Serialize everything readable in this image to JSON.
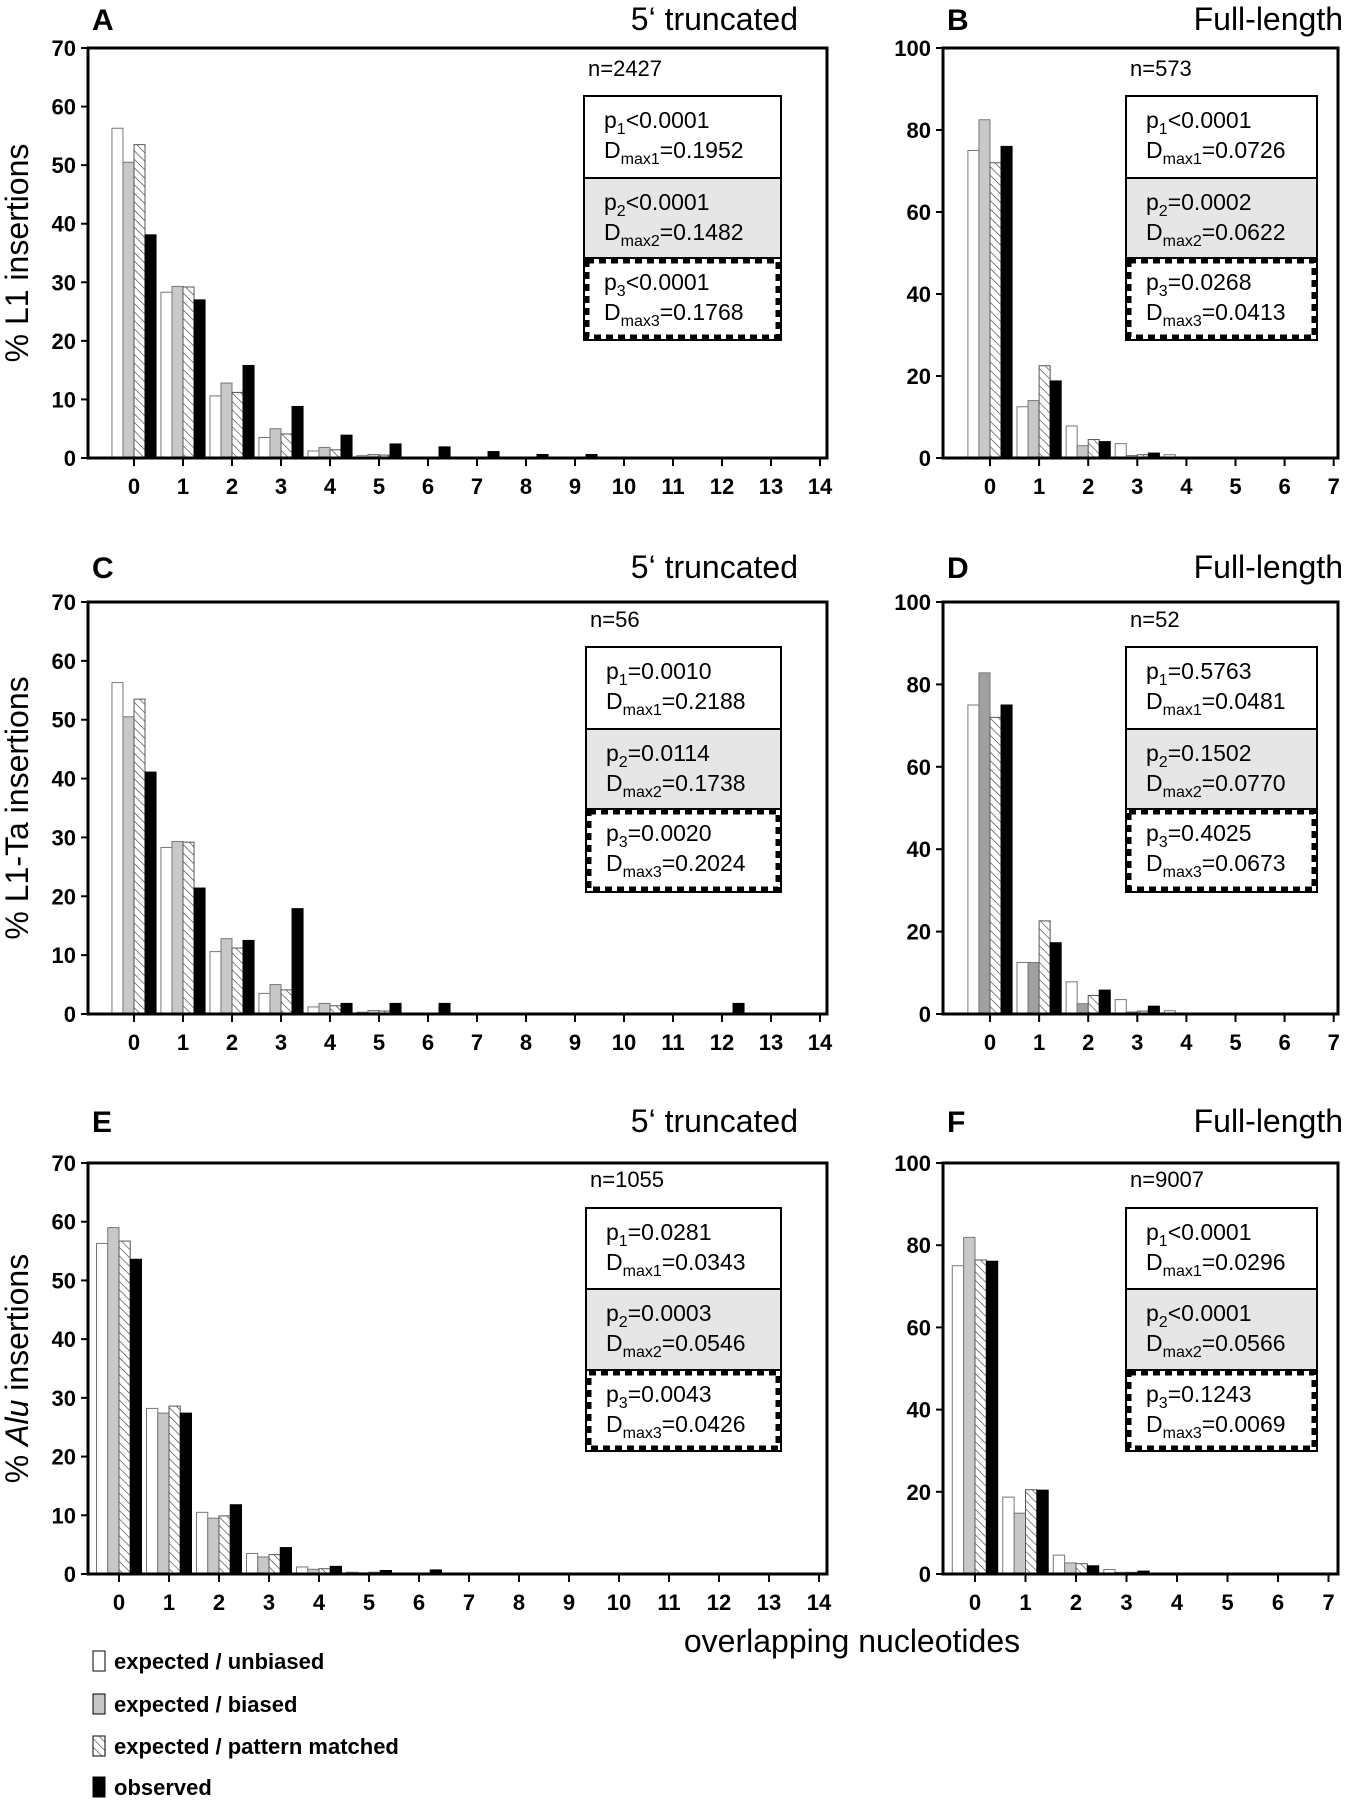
{
  "chart_data": {
    "type": "bar",
    "x_label": "overlapping nucleotides",
    "legend": {
      "placement": "bottom-left",
      "entries": [
        {
          "name": "expected / unbiased",
          "fill": "#ffffff",
          "style": "solid"
        },
        {
          "name": "expected / biased",
          "fill": "#c8c8c8",
          "style": "solid"
        },
        {
          "name": "expected / pattern matched",
          "fill": "#ffffff",
          "style": "hatched"
        },
        {
          "name": "observed",
          "fill": "#000000",
          "style": "solid"
        }
      ]
    },
    "panels": [
      {
        "letter": "A",
        "title": "5‘ truncated",
        "ylabel": "% L1 insertions",
        "ylabel_italic": "",
        "ylim": [
          0,
          70
        ],
        "yticks": [
          0,
          10,
          20,
          30,
          40,
          50,
          60,
          70
        ],
        "categories": [
          "0",
          "1",
          "2",
          "3",
          "4",
          "5",
          "6",
          "7",
          "8",
          "9",
          "10",
          "11",
          "12",
          "13",
          "14"
        ],
        "n": "n=2427",
        "biased_fill": "#c8c8c8",
        "series": [
          {
            "name": "expected / unbiased",
            "values": [
              56.3,
              28.3,
              10.6,
              3.5,
              1.2,
              0.4,
              0.1,
              0,
              0,
              0,
              0,
              0,
              0,
              0,
              0
            ]
          },
          {
            "name": "expected / biased",
            "values": [
              50.5,
              29.3,
              12.8,
              5.0,
              1.8,
              0.6,
              0.15,
              0,
              0,
              0,
              0,
              0,
              0,
              0,
              0
            ]
          },
          {
            "name": "expected / pattern matched",
            "values": [
              53.5,
              29.2,
              11.2,
              4.1,
              1.4,
              0.5,
              0.1,
              0,
              0,
              0,
              0,
              0,
              0,
              0,
              0
            ]
          },
          {
            "name": "observed",
            "values": [
              38.1,
              27.0,
              15.8,
              8.8,
              3.9,
              2.4,
              1.9,
              1.1,
              0.6,
              0.6,
              0,
              0,
              0.1,
              0,
              0
            ]
          }
        ],
        "stats": [
          {
            "p": "p",
            "p_sub": "1",
            "p_val": "<0.0001",
            "d": "D",
            "d_sub": "max1",
            "d_val": "=0.1952"
          },
          {
            "p": "p",
            "p_sub": "2",
            "p_val": "<0.0001",
            "d": "D",
            "d_sub": "max2",
            "d_val": "=0.1482"
          },
          {
            "p": "p",
            "p_sub": "3",
            "p_val": "<0.0001",
            "d": "D",
            "d_sub": "max3",
            "d_val": "=0.1768"
          }
        ]
      },
      {
        "letter": "B",
        "title": "Full-length",
        "ylabel": "",
        "ylabel_italic": "",
        "ylim": [
          0,
          100
        ],
        "yticks": [
          0,
          20,
          40,
          60,
          80,
          100
        ],
        "categories": [
          "0",
          "1",
          "2",
          "3",
          "4",
          "5",
          "6",
          "7"
        ],
        "n": "n=573",
        "biased_fill": "#c8c8c8",
        "series": [
          {
            "name": "expected / unbiased",
            "values": [
              75,
              12.5,
              7.8,
              3.5,
              0.8,
              0.1,
              0,
              0
            ]
          },
          {
            "name": "expected / biased",
            "values": [
              82.5,
              14,
              3,
              0.6,
              0,
              0,
              0,
              0
            ]
          },
          {
            "name": "expected / pattern matched",
            "values": [
              72,
              22.5,
              4.5,
              0.8,
              0,
              0,
              0,
              0
            ]
          },
          {
            "name": "observed",
            "values": [
              76,
              18.8,
              4,
              1.2,
              0,
              0,
              0,
              0
            ]
          }
        ],
        "stats": [
          {
            "p": "p",
            "p_sub": "1",
            "p_val": "<0.0001",
            "d": "D",
            "d_sub": "max1",
            "d_val": "=0.0726"
          },
          {
            "p": "p",
            "p_sub": "2",
            "p_val": "=0.0002",
            "d": "D",
            "d_sub": "max2",
            "d_val": "=0.0622"
          },
          {
            "p": "p",
            "p_sub": "3",
            "p_val": "=0.0268",
            "d": "D",
            "d_sub": "max3",
            "d_val": "=0.0413"
          }
        ]
      },
      {
        "letter": "C",
        "title": "5‘ truncated",
        "ylabel": "% L1-Ta insertions",
        "ylabel_italic": "",
        "ylim": [
          0,
          70
        ],
        "yticks": [
          0,
          10,
          20,
          30,
          40,
          50,
          60,
          70
        ],
        "categories": [
          "0",
          "1",
          "2",
          "3",
          "4",
          "5",
          "6",
          "7",
          "8",
          "9",
          "10",
          "11",
          "12",
          "13",
          "14"
        ],
        "n": "n=56",
        "biased_fill": "#c8c8c8",
        "series": [
          {
            "name": "expected / unbiased",
            "values": [
              56.3,
              28.3,
              10.6,
              3.5,
              1.2,
              0.3,
              0.1,
              0,
              0,
              0,
              0,
              0,
              0,
              0,
              0
            ]
          },
          {
            "name": "expected / biased",
            "values": [
              50.5,
              29.3,
              12.8,
              5.0,
              1.8,
              0.6,
              0.1,
              0,
              0,
              0,
              0,
              0,
              0,
              0,
              0
            ]
          },
          {
            "name": "expected / pattern matched",
            "values": [
              53.5,
              29.2,
              11.2,
              4.1,
              1.4,
              0.5,
              0.1,
              0,
              0,
              0,
              0,
              0,
              0,
              0,
              0
            ]
          },
          {
            "name": "observed",
            "values": [
              41.1,
              21.4,
              12.5,
              17.9,
              1.8,
              1.8,
              1.8,
              0,
              0,
              0,
              0,
              0,
              1.8,
              0,
              0
            ]
          }
        ],
        "stats": [
          {
            "p": "p",
            "p_sub": "1",
            "p_val": "=0.0010",
            "d": "D",
            "d_sub": "max1",
            "d_val": "=0.2188"
          },
          {
            "p": "p",
            "p_sub": "2",
            "p_val": "=0.0114",
            "d": "D",
            "d_sub": "max2",
            "d_val": "=0.1738"
          },
          {
            "p": "p",
            "p_sub": "3",
            "p_val": "=0.0020",
            "d": "D",
            "d_sub": "max3",
            "d_val": "=0.2024"
          }
        ]
      },
      {
        "letter": "D",
        "title": "Full-length",
        "ylabel": "",
        "ylabel_italic": "",
        "ylim": [
          0,
          100
        ],
        "yticks": [
          0,
          20,
          40,
          60,
          80,
          100
        ],
        "categories": [
          "0",
          "1",
          "2",
          "3",
          "4",
          "5",
          "6",
          "7"
        ],
        "n": "n=52",
        "biased_fill": "#a0a0a0",
        "series": [
          {
            "name": "expected / unbiased",
            "values": [
              75,
              12.5,
              7.8,
              3.5,
              0.8,
              0,
              0,
              0
            ]
          },
          {
            "name": "expected / biased",
            "values": [
              82.8,
              12.5,
              2.5,
              0.5,
              0,
              0,
              0,
              0
            ]
          },
          {
            "name": "expected / pattern matched",
            "values": [
              72,
              22.6,
              4.5,
              0.7,
              0,
              0,
              0,
              0
            ]
          },
          {
            "name": "observed",
            "values": [
              75,
              17.3,
              5.8,
              1.9,
              0,
              0,
              0,
              0
            ]
          }
        ],
        "stats": [
          {
            "p": "p",
            "p_sub": "1",
            "p_val": "=0.5763",
            "d": "D",
            "d_sub": "max1",
            "d_val": "=0.0481"
          },
          {
            "p": "p",
            "p_sub": "2",
            "p_val": "=0.1502",
            "d": "D",
            "d_sub": "max2",
            "d_val": "=0.0770"
          },
          {
            "p": "p",
            "p_sub": "3",
            "p_val": "=0.4025",
            "d": "D",
            "d_sub": "max3",
            "d_val": "=0.0673"
          }
        ]
      },
      {
        "letter": "E",
        "title": "5‘ truncated",
        "ylabel": "% ",
        "ylabel_italic": "Alu",
        "ylabel_suffix": " insertions",
        "ylim": [
          0,
          70
        ],
        "yticks": [
          0,
          10,
          20,
          30,
          40,
          50,
          60,
          70
        ],
        "categories": [
          "0",
          "1",
          "2",
          "3",
          "4",
          "5",
          "6",
          "7",
          "8",
          "9",
          "10",
          "11",
          "12",
          "13",
          "14"
        ],
        "n": "n=1055",
        "biased_fill": "#c8c8c8",
        "series": [
          {
            "name": "expected / unbiased",
            "values": [
              56.3,
              28.2,
              10.5,
              3.5,
              1.2,
              0.3,
              0.1,
              0,
              0,
              0,
              0,
              0,
              0,
              0,
              0
            ]
          },
          {
            "name": "expected / biased",
            "values": [
              59.0,
              27.4,
              9.5,
              2.9,
              0.8,
              0.2,
              0,
              0,
              0,
              0,
              0,
              0,
              0,
              0,
              0
            ]
          },
          {
            "name": "expected / pattern matched",
            "values": [
              56.7,
              28.6,
              9.9,
              3.3,
              0.9,
              0.3,
              0,
              0,
              0,
              0,
              0,
              0,
              0,
              0,
              0
            ]
          },
          {
            "name": "observed",
            "values": [
              53.6,
              27.4,
              11.8,
              4.5,
              1.3,
              0.6,
              0.7,
              0,
              0,
              0,
              0,
              0,
              0,
              0,
              0
            ]
          }
        ],
        "stats": [
          {
            "p": "p",
            "p_sub": "1",
            "p_val": "=0.0281",
            "d": "D",
            "d_sub": "max1",
            "d_val": "=0.0343"
          },
          {
            "p": "p",
            "p_sub": "2",
            "p_val": "=0.0003",
            "d": "D",
            "d_sub": "max2",
            "d_val": "=0.0546"
          },
          {
            "p": "p",
            "p_sub": "3",
            "p_val": "=0.0043",
            "d": "D",
            "d_sub": "max3",
            "d_val": "=0.0426"
          }
        ]
      },
      {
        "letter": "F",
        "title": "Full-length",
        "ylabel": "",
        "ylabel_italic": "",
        "ylim": [
          0,
          100
        ],
        "yticks": [
          0,
          20,
          40,
          60,
          80,
          100
        ],
        "categories": [
          "0",
          "1",
          "2",
          "3",
          "4",
          "5",
          "6",
          "7"
        ],
        "n": "n=9007",
        "biased_fill": "#c8c8c8",
        "series": [
          {
            "name": "expected / unbiased",
            "values": [
              75,
              18.7,
              4.6,
              1.1,
              0.1,
              0,
              0,
              0
            ]
          },
          {
            "name": "expected / biased",
            "values": [
              81.9,
              14.8,
              2.7,
              0.4,
              0,
              0,
              0,
              0
            ]
          },
          {
            "name": "expected / pattern matched",
            "values": [
              76.4,
              20.5,
              2.5,
              0.4,
              0,
              0,
              0,
              0
            ]
          },
          {
            "name": "observed",
            "values": [
              76.1,
              20.4,
              2.0,
              0.7,
              0,
              0,
              0,
              0
            ]
          }
        ],
        "stats": [
          {
            "p": "p",
            "p_sub": "1",
            "p_val": "<0.0001",
            "d": "D",
            "d_sub": "max1",
            "d_val": "=0.0296"
          },
          {
            "p": "p",
            "p_sub": "2",
            "p_val": "<0.0001",
            "d": "D",
            "d_sub": "max2",
            "d_val": "=0.0566"
          },
          {
            "p": "p",
            "p_sub": "3",
            "p_val": "=0.1243",
            "d": "D",
            "d_sub": "max3",
            "d_val": "=0.0069"
          }
        ]
      }
    ]
  }
}
